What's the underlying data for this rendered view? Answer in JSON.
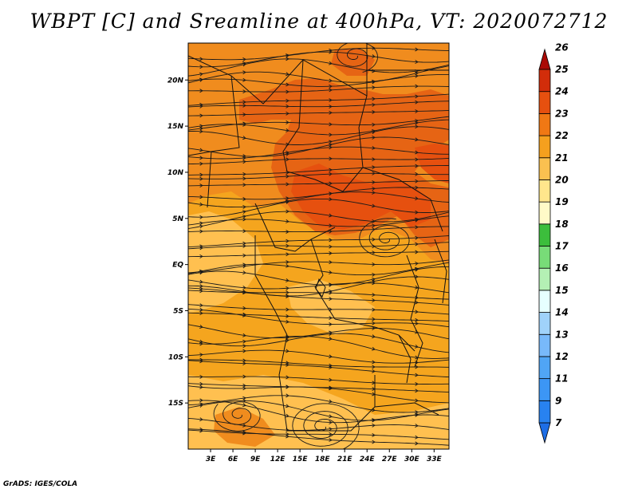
{
  "title": "WBPT [C] and Sreamline at 400hPa, VT: 2020072712",
  "footer": "GrADS: IGES/COLA",
  "map": {
    "lat_range": [
      -20,
      24
    ],
    "lon_range": [
      0,
      35
    ],
    "lat_ticks": [
      {
        "value": 20,
        "label": "20N"
      },
      {
        "value": 15,
        "label": "15N"
      },
      {
        "value": 10,
        "label": "10N"
      },
      {
        "value": 5,
        "label": "5N"
      },
      {
        "value": 0,
        "label": "EQ"
      },
      {
        "value": -5,
        "label": "5S"
      },
      {
        "value": -10,
        "label": "10S"
      },
      {
        "value": -15,
        "label": "15S"
      }
    ],
    "lon_ticks": [
      {
        "value": 3,
        "label": "3E"
      },
      {
        "value": 6,
        "label": "6E"
      },
      {
        "value": 9,
        "label": "9E"
      },
      {
        "value": 12,
        "label": "12E"
      },
      {
        "value": 15,
        "label": "15E"
      },
      {
        "value": 18,
        "label": "18E"
      },
      {
        "value": 21,
        "label": "21E"
      },
      {
        "value": 24,
        "label": "24E"
      },
      {
        "value": 27,
        "label": "27E"
      },
      {
        "value": 30,
        "label": "30E"
      },
      {
        "value": 33,
        "label": "33E"
      }
    ]
  },
  "colorbar": {
    "levels": [
      "7",
      "9",
      "11",
      "12",
      "13",
      "14",
      "15",
      "16",
      "17",
      "18",
      "19",
      "20",
      "21",
      "22",
      "23",
      "24",
      "25",
      "26"
    ],
    "colors": [
      "#1e6ee6",
      "#2882f0",
      "#3c96f5",
      "#50a5f5",
      "#78b9fa",
      "#a0d2fa",
      "#e6ffff",
      "#b4f0b4",
      "#78dc78",
      "#3cbe3c",
      "#fffac8",
      "#ffe68c",
      "#fac050",
      "#f5a01e",
      "#f07814",
      "#e6500f",
      "#d22d0a",
      "#aa0a05"
    ]
  },
  "field_colors": {
    "c20": "#ffc050",
    "c21": "#f5a51e",
    "c22": "#f08c1e",
    "c23": "#e66414",
    "c24": "#e6500f"
  }
}
